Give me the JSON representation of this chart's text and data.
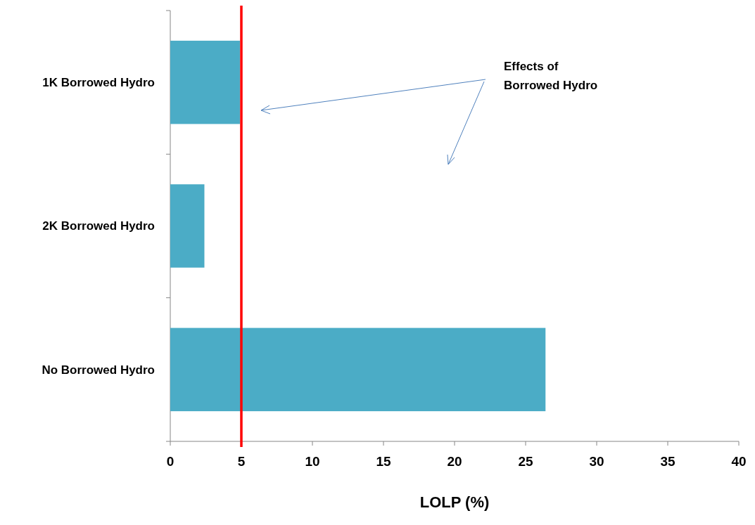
{
  "chart_data": {
    "type": "bar",
    "orientation": "horizontal",
    "xlabel": "LOLP (%)",
    "categories": [
      "1K Borrowed Hydro",
      "2K Borrowed Hydro",
      "No Borrowed Hydro"
    ],
    "values": [
      4.9,
      2.4,
      26.4
    ],
    "color": "#4bacc6",
    "xlim": [
      0,
      40
    ],
    "xticks": [
      0,
      5,
      10,
      15,
      20,
      25,
      30,
      35,
      40
    ],
    "ref_lines": [
      {
        "axis": "x",
        "value": 5,
        "color": "#ff0000"
      }
    ],
    "annotations": [
      "Effects of\nBorrowed Hydro"
    ],
    "grid": false
  }
}
